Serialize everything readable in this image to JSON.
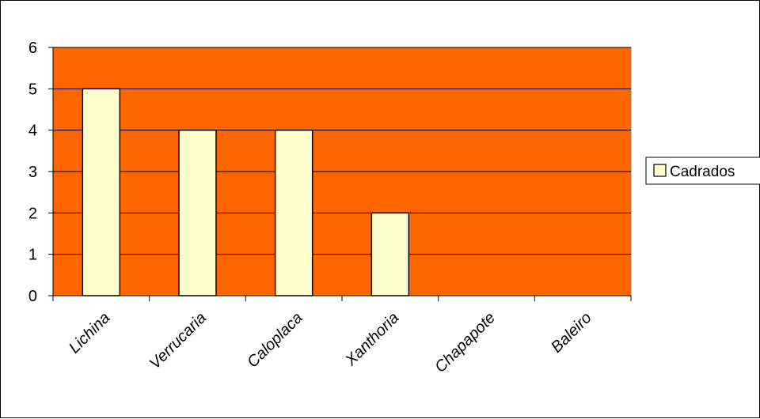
{
  "chart_data": {
    "type": "bar",
    "categories": [
      "Lichina",
      "Verrucaria",
      "Caloplaca",
      "Xanthoria",
      "Chapapote",
      "Baleiro"
    ],
    "series": [
      {
        "name": "Cadrados",
        "values": [
          5,
          4,
          4,
          2,
          0,
          0
        ],
        "color": "#FFFFCC"
      }
    ],
    "ylim": [
      0,
      6
    ],
    "yticks": [
      0,
      1,
      2,
      3,
      4,
      5,
      6
    ],
    "xlabel": "",
    "ylabel": "",
    "title": "",
    "grid": true,
    "legend_position": "right",
    "plot_background": "#FF6600",
    "bar_outline": "#000000"
  }
}
